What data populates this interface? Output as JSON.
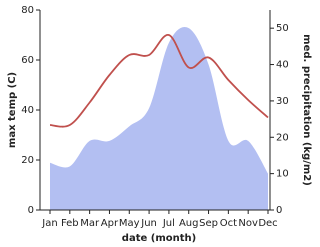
{
  "chart_data": {
    "type": "line-area",
    "x_label": "date (month)",
    "y_label": "max temp (C)",
    "y2_label": "med. precipitation (kg/m2)",
    "categories": [
      "Jan",
      "Feb",
      "Mar",
      "Apr",
      "May",
      "Jun",
      "Jul",
      "Aug",
      "Sep",
      "Oct",
      "Nov",
      "Dec"
    ],
    "series": [
      {
        "name": "max temp",
        "color": "#c0504d",
        "values": [
          34,
          34,
          43,
          54,
          62,
          62,
          70,
          57,
          61,
          52,
          44,
          37
        ]
      },
      {
        "name": "med. precipitation",
        "color": "#b3bff2",
        "axis": "y2",
        "values": [
          13,
          12,
          19,
          19,
          23,
          28,
          46,
          50,
          40,
          19,
          19,
          10
        ]
      }
    ],
    "ylim": [
      0,
      80
    ],
    "yticks": [
      0,
      20,
      40,
      60,
      80
    ],
    "y2lim": [
      0,
      55
    ],
    "y2ticks": [
      0,
      10,
      20,
      30,
      40,
      50
    ]
  }
}
